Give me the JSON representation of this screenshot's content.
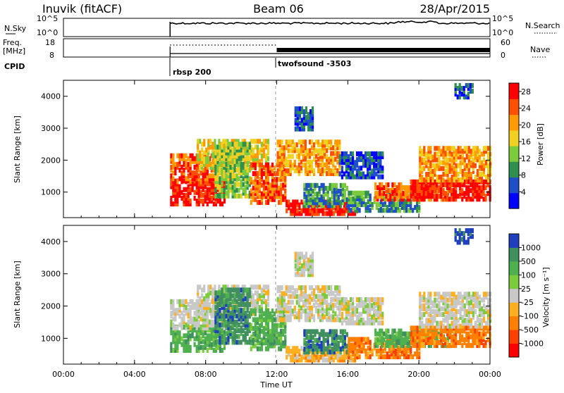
{
  "header": {
    "station": "Inuvik (fitACF)",
    "beam": "Beam 06",
    "date": "28/Apr/2015"
  },
  "top_panels": {
    "nsky_label": "N.Sky",
    "nsky_ticks": [
      "10^5",
      "10^0"
    ],
    "nsearch_label": "N.Search",
    "nsearch_ticks": [
      "10^5",
      "10^0"
    ],
    "freq_label": "Freq.",
    "freq_unit": "[MHz]",
    "freq_ticks": [
      "18",
      "8"
    ],
    "nave_label": "Nave",
    "nave_ticks": [
      "60",
      "0"
    ],
    "cpid_label": "CPID",
    "cpid_segments": [
      "rbsp 200",
      "twofsound -3503"
    ]
  },
  "chart_data": [
    {
      "type": "heatmap",
      "name": "power",
      "ylabel": "Slant Range [km]",
      "yticks": [
        "1000",
        "2000",
        "3000",
        "4000"
      ],
      "ylim": [
        200,
        4500
      ],
      "colorbar_label": "Power [dB]",
      "colorbar_ticks": [
        "4",
        "8",
        "12",
        "16",
        "20",
        "24",
        "28"
      ],
      "colorbar_range": [
        0,
        30
      ],
      "colors": [
        "#0000ff",
        "#1e4fc8",
        "#2f8f4f",
        "#7ccb3c",
        "#f0d020",
        "#ff9a00",
        "#ff5000",
        "#ff0000"
      ],
      "data_start_ut": "06:00"
    },
    {
      "type": "heatmap",
      "name": "velocity",
      "ylabel": "Slant Range [km]",
      "yticks": [
        "1000",
        "2000",
        "3000",
        "4000"
      ],
      "ylim": [
        200,
        4500
      ],
      "colorbar_label": "Velocity [m s⁻¹]",
      "colorbar_ticks": [
        "1000",
        "500",
        "100",
        "25",
        "-25",
        "-100",
        "-500",
        "-1000"
      ],
      "colors": [
        "#1f3fbf",
        "#3f8f5f",
        "#4fb04f",
        "#7ccb3c",
        "#c8c8c8",
        "#ffb020",
        "#ff8000",
        "#ff4000",
        "#ff0000"
      ],
      "xlabel": "Time UT",
      "xticks": [
        "00:00",
        "04:00",
        "08:00",
        "12:00",
        "16:00",
        "20:00",
        "00:00"
      ],
      "xlim_hours": [
        0,
        24
      ]
    }
  ]
}
